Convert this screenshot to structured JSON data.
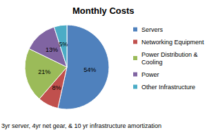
{
  "chart_data": {
    "type": "pie",
    "title": "Monthly Costs",
    "categories": [
      "Servers",
      "Networking Equipment",
      "Power Distribution & Cooling",
      "Power",
      "Other Infrastructure"
    ],
    "values": [
      54,
      8,
      21,
      13,
      5
    ],
    "value_labels": [
      "54%",
      "8%",
      "21%",
      "13%",
      "5%"
    ],
    "colors": [
      "#4f81bd",
      "#c0504d",
      "#9bbb59",
      "#8064a2",
      "#4bacc6"
    ],
    "data_labels": true,
    "legend": "right",
    "annotations": [
      "3yr server, 4yr net gear, & 10 yr infrastructure amortization"
    ]
  }
}
